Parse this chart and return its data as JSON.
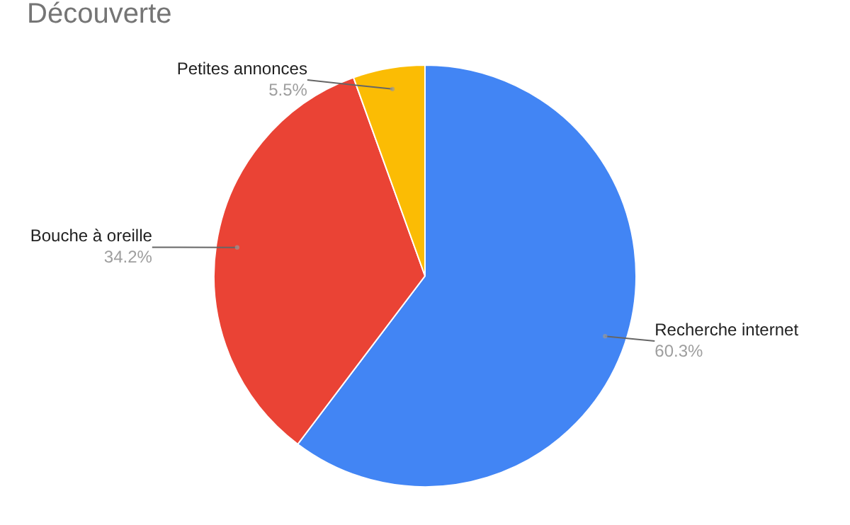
{
  "chart_data": {
    "type": "pie",
    "title": "Découverte",
    "categories": [
      "Recherche internet",
      "Bouche à oreille",
      "Petites annonces"
    ],
    "values": [
      60.3,
      34.2,
      5.5
    ],
    "colors": [
      "#4285f4",
      "#ea4335",
      "#fbbc04"
    ],
    "value_labels": [
      "60.3%",
      "34.2%",
      "5.5%"
    ],
    "legend": false
  }
}
